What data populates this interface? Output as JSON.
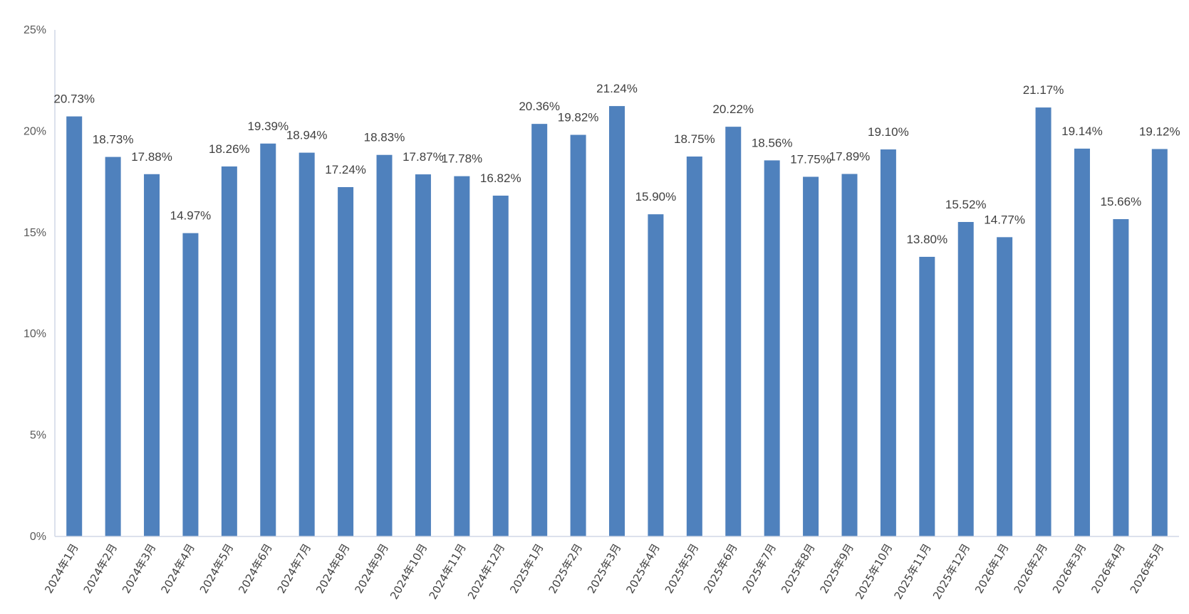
{
  "chart_data": {
    "type": "bar",
    "title": "",
    "xlabel": "",
    "ylabel": "",
    "ylim": [
      0,
      25
    ],
    "y_ticks": [
      "0%",
      "5%",
      "10%",
      "15%",
      "20%",
      "25%"
    ],
    "y_tick_values": [
      0,
      5,
      10,
      15,
      20,
      25
    ],
    "grid": false,
    "legend": "none",
    "bar_color": "#4F81BD",
    "axis_color": "#D0D7E5",
    "categories": [
      "2024年1月",
      "2024年2月",
      "2024年3月",
      "2024年4月",
      "2024年5月",
      "2024年6月",
      "2024年7月",
      "2024年8月",
      "2024年9月",
      "2024年10月",
      "2024年11月",
      "2024年12月",
      "2025年1月",
      "2025年2月",
      "2025年3月",
      "2025年4月",
      "2025年5月",
      "2025年6月",
      "2025年7月",
      "2025年8月",
      "2025年9月",
      "2025年10月",
      "2025年11月",
      "2025年12月",
      "2026年1月",
      "2026年2月",
      "2026年3月",
      "2026年4月",
      "2026年5月"
    ],
    "values": [
      20.73,
      18.73,
      17.88,
      14.97,
      18.26,
      19.39,
      18.94,
      17.24,
      18.83,
      17.87,
      17.78,
      16.82,
      20.36,
      19.82,
      21.24,
      15.9,
      18.75,
      20.22,
      18.56,
      17.75,
      17.89,
      19.1,
      13.8,
      15.52,
      14.77,
      21.17,
      19.14,
      15.66,
      19.12
    ],
    "data_labels": [
      "20.73%",
      "18.73%",
      "17.88%",
      "14.97%",
      "18.26%",
      "19.39%",
      "18.94%",
      "17.24%",
      "18.83%",
      "17.87%",
      "17.78%",
      "16.82%",
      "20.36%",
      "19.82%",
      "21.24%",
      "15.90%",
      "18.75%",
      "20.22%",
      "18.56%",
      "17.75%",
      "17.89%",
      "19.10%",
      "13.80%",
      "15.52%",
      "14.77%",
      "21.17%",
      "19.14%",
      "15.66%",
      "19.12%"
    ]
  }
}
